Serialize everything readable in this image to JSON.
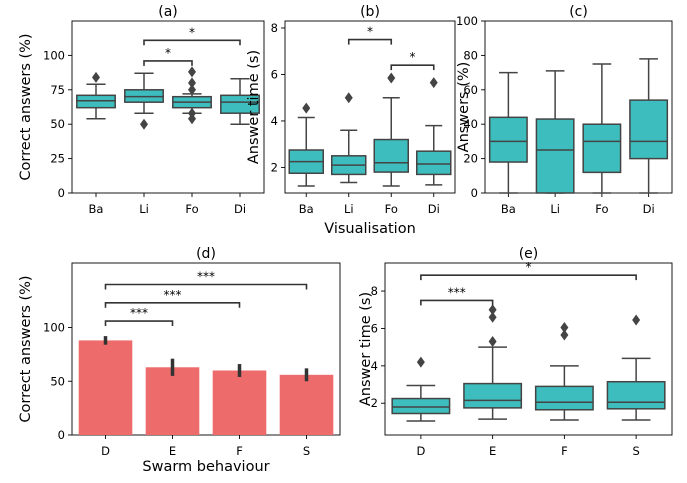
{
  "colors": {
    "teal": "#3dbdbd",
    "salmon": "#ee6b6b",
    "line": "#444444",
    "axis": "#000000"
  },
  "chart_data": [
    {
      "id": "a",
      "type": "boxplot",
      "title": "(a)",
      "xlabel": "",
      "ylabel": "Correct answers (%)",
      "categories": [
        "Ba",
        "Li",
        "Fo",
        "Di"
      ],
      "ylim": [
        0,
        125
      ],
      "yticks": [
        0,
        25,
        50,
        75,
        100
      ],
      "boxes": [
        {
          "whislo": 54,
          "q1": 62,
          "med": 67,
          "q3": 71,
          "whishi": 79,
          "fliers": [
            84
          ]
        },
        {
          "whislo": 58,
          "q1": 66,
          "med": 70,
          "q3": 75,
          "whishi": 87,
          "fliers": [
            50
          ]
        },
        {
          "whislo": 58,
          "q1": 62,
          "med": 66,
          "q3": 70,
          "whishi": 72,
          "fliers": [
            75,
            80,
            88,
            58,
            54
          ]
        },
        {
          "whislo": 50,
          "q1": 58,
          "med": 66,
          "q3": 71,
          "whishi": 83,
          "fliers": []
        }
      ],
      "significance": [
        {
          "from": "Li",
          "to": "Di",
          "y": 111,
          "label": "*"
        },
        {
          "from": "Li",
          "to": "Fo",
          "y": 96,
          "label": "*"
        }
      ]
    },
    {
      "id": "b",
      "type": "boxplot",
      "title": "(b)",
      "xlabel": "Visualisation",
      "ylabel": "Answer time (s)",
      "categories": [
        "Ba",
        "Li",
        "Fo",
        "Di"
      ],
      "ylim": [
        0.9,
        8.3
      ],
      "yticks": [
        2,
        4,
        6,
        8
      ],
      "boxes": [
        {
          "whislo": 1.2,
          "q1": 1.75,
          "med": 2.25,
          "q3": 2.75,
          "whishi": 4.15,
          "fliers": [
            4.55
          ]
        },
        {
          "whislo": 1.35,
          "q1": 1.7,
          "med": 2.1,
          "q3": 2.5,
          "whishi": 3.6,
          "fliers": [
            5.0
          ]
        },
        {
          "whislo": 1.2,
          "q1": 1.8,
          "med": 2.2,
          "q3": 3.2,
          "whishi": 5.0,
          "fliers": [
            5.85
          ]
        },
        {
          "whislo": 1.25,
          "q1": 1.7,
          "med": 2.15,
          "q3": 2.7,
          "whishi": 3.8,
          "fliers": [
            5.65
          ]
        }
      ],
      "significance": [
        {
          "from": "Li",
          "to": "Fo",
          "y": 7.5,
          "label": "*"
        },
        {
          "from": "Fo",
          "to": "Di",
          "y": 6.4,
          "label": "*"
        }
      ]
    },
    {
      "id": "c",
      "type": "boxplot",
      "title": "(c)",
      "xlabel": "",
      "ylabel": "Answers (%)",
      "categories": [
        "Ba",
        "Li",
        "Fo",
        "Di"
      ],
      "ylim": [
        0,
        100
      ],
      "yticks": [
        0,
        20,
        40,
        60,
        80,
        100
      ],
      "boxes": [
        {
          "whislo": 0,
          "q1": 18,
          "med": 30,
          "q3": 44,
          "whishi": 70,
          "fliers": []
        },
        {
          "whislo": 0,
          "q1": 0,
          "med": 25,
          "q3": 43,
          "whishi": 71,
          "fliers": []
        },
        {
          "whislo": 0,
          "q1": 12,
          "med": 30,
          "q3": 40,
          "whishi": 75,
          "fliers": []
        },
        {
          "whislo": 0,
          "q1": 20,
          "med": 30,
          "q3": 54,
          "whishi": 78,
          "fliers": []
        }
      ],
      "significance": []
    },
    {
      "id": "d",
      "type": "bar",
      "title": "(d)",
      "xlabel": "Swarm behaviour",
      "ylabel": "Correct answers (%)",
      "categories": [
        "D",
        "E",
        "F",
        "S"
      ],
      "values": [
        88,
        63,
        60,
        56
      ],
      "errors": [
        4,
        8,
        6,
        6
      ],
      "ylim": [
        0,
        160
      ],
      "yticks": [
        0,
        50,
        100
      ],
      "significance": [
        {
          "from": "D",
          "to": "E",
          "y": 106,
          "label": "***"
        },
        {
          "from": "D",
          "to": "F",
          "y": 123,
          "label": "***"
        },
        {
          "from": "D",
          "to": "S",
          "y": 140,
          "label": "***"
        }
      ]
    },
    {
      "id": "e",
      "type": "boxplot",
      "title": "(e)",
      "xlabel": "",
      "ylabel": "Answer time (s)",
      "categories": [
        "D",
        "E",
        "F",
        "S"
      ],
      "ylim": [
        0.3,
        9.5
      ],
      "yticks": [
        2,
        4,
        6,
        8
      ],
      "boxes": [
        {
          "whislo": 1.05,
          "q1": 1.45,
          "med": 1.8,
          "q3": 2.25,
          "whishi": 2.95,
          "fliers": [
            4.2
          ]
        },
        {
          "whislo": 1.15,
          "q1": 1.75,
          "med": 2.15,
          "q3": 3.05,
          "whishi": 5.0,
          "fliers": [
            5.3,
            6.6,
            7.0
          ]
        },
        {
          "whislo": 1.1,
          "q1": 1.65,
          "med": 2.05,
          "q3": 2.9,
          "whishi": 4.0,
          "fliers": [
            5.65,
            6.05
          ]
        },
        {
          "whislo": 1.1,
          "q1": 1.7,
          "med": 2.05,
          "q3": 3.15,
          "whishi": 4.4,
          "fliers": [
            6.45
          ]
        }
      ],
      "significance": [
        {
          "from": "D",
          "to": "E",
          "y": 7.5,
          "label": "***"
        },
        {
          "from": "D",
          "to": "S",
          "y": 8.85,
          "label": "*"
        }
      ]
    }
  ]
}
